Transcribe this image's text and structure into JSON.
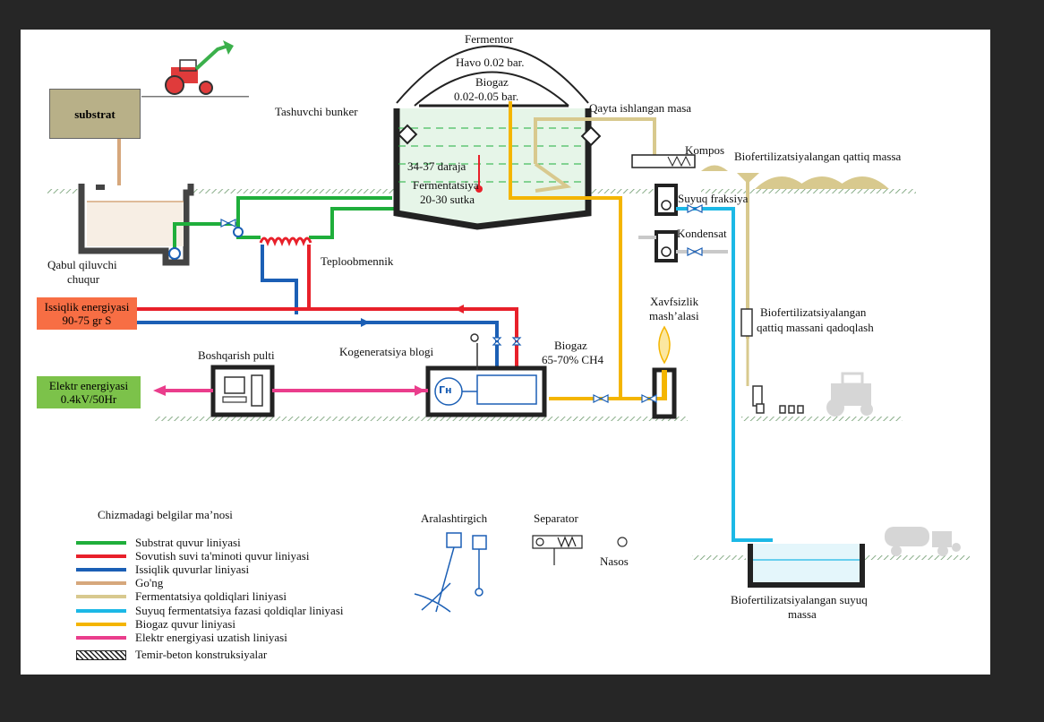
{
  "colors": {
    "substrate": "#1fae3b",
    "cooling": "#e8202a",
    "heat": "#1b5fb5",
    "manure": "#d6a77c",
    "residue": "#d8c98e",
    "liquid": "#1cb8e6",
    "biogas": "#f4b500",
    "electric": "#ea3d8c",
    "heat_box": "#f76e44",
    "elec_box": "#7cc24a",
    "substrat_box": "#b8b088"
  },
  "labels": {
    "fermentor": "Fermentor",
    "havo": "Havo 0.02 bar.",
    "biogaz_top": "Biogaz",
    "biogaz_pressure": "0.02-0.05 bar.",
    "qayta": "Qayta ishlangan masa",
    "tashuvchi": "Tashuvchi bunker",
    "temperature": "34-37 daraja",
    "fermentatsiya1": "Fermentatsiya",
    "fermentatsiya2": "20-30 sutka",
    "kompos": "Kompos",
    "biofert_solid": "Biofertilizatsiyalangan qattiq massa",
    "suyuq_fraksiya": "Suyuq fraksiya",
    "kondensat": "Kondensat",
    "substrat": "substrat",
    "qabul1": "Qabul qiluvchi",
    "qabul2": "chuqur",
    "teploobmennik": "Teploobmennik",
    "heat_energy1": "Issiqlik energiyasi",
    "heat_energy2": "90-75 gr S",
    "xavfsizlik1": "Xavfsizlik",
    "xavfsizlik2": "mash’alasi",
    "pack1": "Biofertilizatsiyalangan",
    "pack2": "qattiq massani qadoqlash",
    "kogeneratsiya": "Kogeneratsiya blogi",
    "biogaz_ch4_1": "Biogaz",
    "biogaz_ch4_2": "65-70% CH4",
    "boshqarish": "Boshqarish pulti",
    "elec_energy1": "Elektr energiyasi",
    "elec_energy2": "0.4kV/50Hr",
    "generator": "Гн",
    "legend_title": "Chizmadagi belgilar ma’nosi",
    "aralashtirgich": "Aralashtirgich",
    "separator": "Separator",
    "nasos": "Nasos",
    "liquid1": "Biofertilizatsiyalangan suyuq",
    "liquid2": "massa"
  },
  "legend": [
    {
      "label": "Substrat quvur liniyasi",
      "color": "#1fae3b"
    },
    {
      "label": "Sovutish suvi ta'minoti quvur liniyasi",
      "color": "#e8202a"
    },
    {
      "label": "Issiqlik quvurlar liniyasi",
      "color": "#1b5fb5"
    },
    {
      "label": "Go'ng",
      "color": "#d6a77c"
    },
    {
      "label": "Fermentatsiya qoldiqlari liniyasi",
      "color": "#d8c98e"
    },
    {
      "label": "Suyuq fermentatsiya fazasi qoldiqlar liniyasi",
      "color": "#1cb8e6"
    },
    {
      "label": "Biogaz quvur liniyasi",
      "color": "#f4b500"
    },
    {
      "label": "Elektr energiyasi uzatish liniyasi",
      "color": "#ea3d8c"
    }
  ],
  "legend_hatch_label": "Temir-beton konstruksiyalar"
}
